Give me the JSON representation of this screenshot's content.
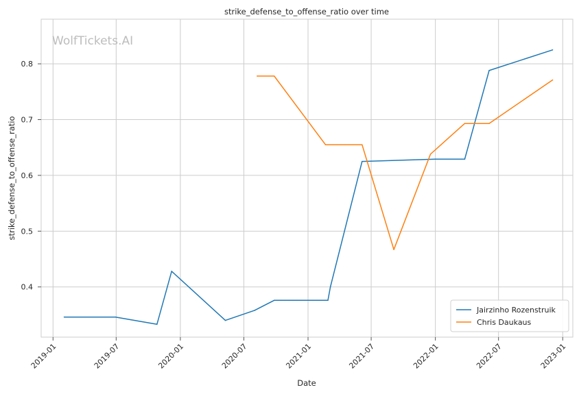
{
  "watermark": "WolfTickets.AI",
  "chart_data": {
    "type": "line",
    "title": "strike_defense_to_offense_ratio over time",
    "xlabel": "Date",
    "ylabel": "strike_defense_to_offense_ratio",
    "x_ticks": [
      "2019-01",
      "2019-07",
      "2020-01",
      "2020-07",
      "2021-01",
      "2021-07",
      "2022-01",
      "2022-07",
      "2023-01"
    ],
    "y_ticks": [
      0.4,
      0.5,
      0.6,
      0.7,
      0.8
    ],
    "xlim": [
      "2018-11-28",
      "2023-01-30"
    ],
    "ylim": [
      0.31,
      0.88
    ],
    "grid": true,
    "legend_position": "bottom-right",
    "series": [
      {
        "name": "Jairzinho Rozenstruik",
        "color": "#1f77b4",
        "points": [
          {
            "x": "2019-02-02",
            "y": 0.346
          },
          {
            "x": "2019-06-29",
            "y": 0.346
          },
          {
            "x": "2019-10-26",
            "y": 0.333
          },
          {
            "x": "2019-12-07",
            "y": 0.428
          },
          {
            "x": "2020-05-09",
            "y": 0.34
          },
          {
            "x": "2020-08-01",
            "y": 0.358
          },
          {
            "x": "2020-09-26",
            "y": 0.376
          },
          {
            "x": "2021-02-27",
            "y": 0.376
          },
          {
            "x": "2021-03-06",
            "y": 0.4
          },
          {
            "x": "2021-06-05",
            "y": 0.625
          },
          {
            "x": "2022-01-01",
            "y": 0.629
          },
          {
            "x": "2022-03-26",
            "y": 0.629
          },
          {
            "x": "2022-06-04",
            "y": 0.788
          },
          {
            "x": "2022-12-03",
            "y": 0.825
          }
        ]
      },
      {
        "name": "Chris Daukaus",
        "color": "#ff7f0e",
        "points": [
          {
            "x": "2020-08-08",
            "y": 0.778
          },
          {
            "x": "2020-09-26",
            "y": 0.778
          },
          {
            "x": "2021-02-20",
            "y": 0.655
          },
          {
            "x": "2021-06-05",
            "y": 0.655
          },
          {
            "x": "2021-09-04",
            "y": 0.467
          },
          {
            "x": "2021-12-18",
            "y": 0.638
          },
          {
            "x": "2022-03-26",
            "y": 0.693
          },
          {
            "x": "2022-06-04",
            "y": 0.693
          },
          {
            "x": "2022-12-03",
            "y": 0.771
          }
        ]
      }
    ]
  }
}
